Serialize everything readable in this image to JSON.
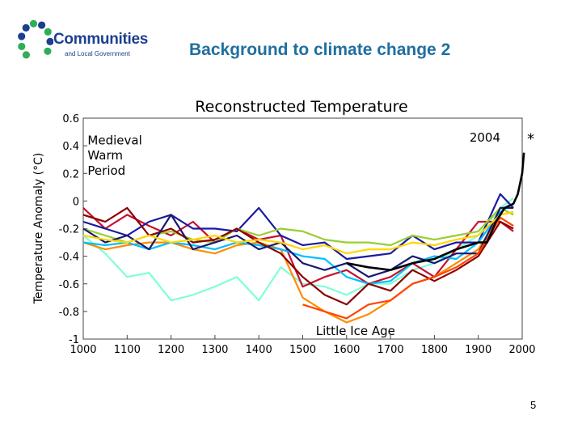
{
  "logo": {
    "name": "Communities",
    "subtitle": "and Local Government"
  },
  "slide": {
    "title": "Background to climate change 2",
    "page_number": "5"
  },
  "colors": {
    "title": "#1f6f9f",
    "logo_blue": "#1d3f8f",
    "logo_green": "#2eae5a",
    "series": [
      "#7fffd4",
      "#c8102e",
      "#1a1aa0",
      "#ff8c00",
      "#9acd32",
      "#00bfff",
      "#8b0000",
      "#191970",
      "#ffd700",
      "#ff4500",
      "#000000"
    ]
  },
  "chart_data": {
    "type": "line",
    "title": "Reconstructed Temperature",
    "xlabel": "",
    "ylabel": "Temperature Anomaly (°C)",
    "xlim": [
      1000,
      2000
    ],
    "ylim": [
      -1.0,
      0.6
    ],
    "xticks": [
      "1000",
      "1100",
      "1200",
      "1300",
      "1400",
      "1500",
      "1600",
      "1700",
      "1800",
      "1900",
      "2000"
    ],
    "yticks": [
      "0.6",
      "0.4",
      "0.2",
      "0",
      "-0.2",
      "-0.4",
      "-0.6",
      "-0.8",
      "-1"
    ],
    "grid": false,
    "annotations": [
      {
        "text": "Medieval",
        "x": 1010,
        "y": 0.41
      },
      {
        "text": "Warm",
        "x": 1010,
        "y": 0.3
      },
      {
        "text": "Period",
        "x": 1010,
        "y": 0.19
      },
      {
        "text": "2004",
        "x": 1880,
        "y": 0.43
      },
      {
        "text": "Little Ice Age",
        "x": 1530,
        "y": -0.97
      }
    ],
    "marker_2004": {
      "x": 2004,
      "y": 0.45,
      "symbol": "*"
    },
    "series": [
      {
        "x": [
          1000,
          1050,
          1100,
          1150,
          1200,
          1250,
          1300,
          1350,
          1400,
          1450,
          1500,
          1550,
          1600,
          1650,
          1700,
          1750,
          1800,
          1850,
          1900,
          1950,
          1980
        ],
        "values": [
          -0.25,
          -0.38,
          -0.55,
          -0.52,
          -0.72,
          -0.68,
          -0.62,
          -0.55,
          -0.72,
          -0.48,
          -0.6,
          -0.62,
          -0.68,
          -0.6,
          -0.6,
          -0.5,
          -0.45,
          -0.35,
          -0.25,
          -0.05,
          0.02
        ]
      },
      {
        "x": [
          1000,
          1050,
          1100,
          1150,
          1200,
          1250,
          1300,
          1350,
          1400,
          1450,
          1500,
          1550,
          1600,
          1650,
          1700,
          1750,
          1800,
          1850,
          1900,
          1950,
          1980
        ],
        "values": [
          -0.05,
          -0.2,
          -0.1,
          -0.18,
          -0.25,
          -0.15,
          -0.3,
          -0.2,
          -0.28,
          -0.25,
          -0.62,
          -0.55,
          -0.5,
          -0.6,
          -0.55,
          -0.45,
          -0.55,
          -0.35,
          -0.15,
          -0.15,
          -0.22
        ]
      },
      {
        "x": [
          1000,
          1050,
          1100,
          1150,
          1200,
          1250,
          1300,
          1350,
          1400,
          1450,
          1500,
          1550,
          1600,
          1650,
          1700,
          1750,
          1800,
          1850,
          1900,
          1950,
          1980
        ],
        "values": [
          -0.15,
          -0.2,
          -0.25,
          -0.15,
          -0.1,
          -0.2,
          -0.2,
          -0.22,
          -0.05,
          -0.25,
          -0.32,
          -0.3,
          -0.42,
          -0.4,
          -0.38,
          -0.25,
          -0.35,
          -0.3,
          -0.3,
          0.05,
          -0.05
        ]
      },
      {
        "x": [
          1000,
          1050,
          1100,
          1150,
          1200,
          1250,
          1300,
          1350,
          1400,
          1450,
          1500,
          1550,
          1600,
          1650,
          1700,
          1750,
          1800,
          1850,
          1900,
          1950,
          1980
        ],
        "values": [
          -0.3,
          -0.35,
          -0.32,
          -0.3,
          -0.3,
          -0.35,
          -0.38,
          -0.32,
          -0.3,
          -0.35,
          -0.7,
          -0.8,
          -0.88,
          -0.82,
          -0.72,
          -0.6,
          -0.55,
          -0.45,
          -0.35,
          -0.1,
          -0.08
        ]
      },
      {
        "x": [
          1000,
          1050,
          1100,
          1150,
          1200,
          1250,
          1300,
          1350,
          1400,
          1450,
          1500,
          1550,
          1600,
          1650,
          1700,
          1750,
          1800,
          1850,
          1900,
          1950,
          1980
        ],
        "values": [
          -0.2,
          -0.25,
          -0.3,
          -0.25,
          -0.22,
          -0.28,
          -0.3,
          -0.2,
          -0.25,
          -0.2,
          -0.22,
          -0.28,
          -0.3,
          -0.3,
          -0.32,
          -0.25,
          -0.28,
          -0.25,
          -0.22,
          -0.05,
          -0.1
        ]
      },
      {
        "x": [
          1000,
          1050,
          1100,
          1150,
          1200,
          1250,
          1300,
          1350,
          1400,
          1450,
          1500,
          1550,
          1600,
          1650,
          1700,
          1750,
          1800,
          1850,
          1900,
          1950,
          1980
        ],
        "values": [
          -0.3,
          -0.32,
          -0.3,
          -0.35,
          -0.3,
          -0.32,
          -0.35,
          -0.3,
          -0.32,
          -0.35,
          -0.4,
          -0.42,
          -0.55,
          -0.6,
          -0.58,
          -0.45,
          -0.4,
          -0.42,
          -0.3,
          -0.08,
          -0.02
        ]
      },
      {
        "x": [
          1000,
          1050,
          1100,
          1150,
          1200,
          1250,
          1300,
          1350,
          1400,
          1450,
          1500,
          1550,
          1600,
          1650,
          1700,
          1750,
          1800,
          1850,
          1900,
          1950,
          1980
        ],
        "values": [
          -0.1,
          -0.15,
          -0.05,
          -0.25,
          -0.2,
          -0.3,
          -0.28,
          -0.2,
          -0.3,
          -0.38,
          -0.55,
          -0.68,
          -0.75,
          -0.6,
          -0.65,
          -0.5,
          -0.58,
          -0.5,
          -0.4,
          -0.15,
          -0.2
        ]
      },
      {
        "x": [
          1000,
          1050,
          1100,
          1150,
          1200,
          1250,
          1300,
          1350,
          1400,
          1450,
          1500,
          1550,
          1600,
          1650,
          1700,
          1750,
          1800,
          1850,
          1900,
          1950,
          1980
        ],
        "values": [
          -0.2,
          -0.3,
          -0.25,
          -0.35,
          -0.1,
          -0.35,
          -0.3,
          -0.25,
          -0.35,
          -0.3,
          -0.45,
          -0.5,
          -0.45,
          -0.55,
          -0.5,
          -0.4,
          -0.45,
          -0.38,
          -0.38,
          -0.05,
          -0.05
        ]
      },
      {
        "x": [
          1000,
          1050,
          1100,
          1150,
          1200,
          1250,
          1300,
          1350,
          1400,
          1450,
          1500,
          1550,
          1600,
          1650,
          1700,
          1750,
          1800,
          1850,
          1900,
          1950,
          1980
        ],
        "values": [
          -0.25,
          -0.28,
          -0.3,
          -0.25,
          -0.3,
          -0.28,
          -0.25,
          -0.3,
          -0.28,
          -0.3,
          -0.35,
          -0.32,
          -0.38,
          -0.35,
          -0.35,
          -0.3,
          -0.32,
          -0.28,
          -0.25,
          -0.1,
          -0.08
        ]
      },
      {
        "x": [
          1500,
          1550,
          1600,
          1650,
          1700,
          1750,
          1800,
          1850,
          1900,
          1950,
          1980
        ],
        "values": [
          -0.75,
          -0.8,
          -0.85,
          -0.75,
          -0.72,
          -0.6,
          -0.55,
          -0.48,
          -0.38,
          -0.12,
          -0.18
        ]
      },
      {
        "x": [
          1600,
          1650,
          1700,
          1750,
          1800,
          1850,
          1900,
          1920,
          1940,
          1960,
          1980,
          1990,
          2000,
          2004
        ],
        "values": [
          -0.45,
          -0.48,
          -0.5,
          -0.45,
          -0.42,
          -0.35,
          -0.3,
          -0.3,
          -0.15,
          -0.05,
          -0.02,
          0.05,
          0.2,
          0.35
        ]
      }
    ]
  }
}
